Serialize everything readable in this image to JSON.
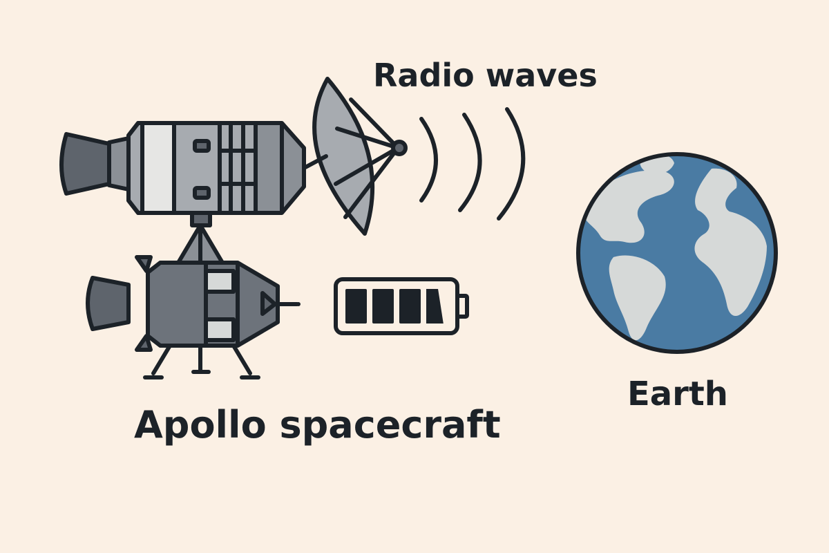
{
  "labels": {
    "radio_waves": "Radio waves",
    "spacecraft": "Apollo spacecraft",
    "earth": "Earth"
  },
  "battery": {
    "filled_cells": 3,
    "total_cells": 4
  },
  "icons": {
    "spacecraft": "apollo-spacecraft-icon",
    "dish": "radio-dish-icon",
    "waves": "radio-waves-icon",
    "battery": "battery-icon",
    "earth": "earth-globe-icon"
  },
  "colors": {
    "background": "#fbf0e4",
    "outline": "#1c2228",
    "hull_light": "#a7abb0",
    "hull_mid": "#8b9096",
    "hull_dark": "#5e646c",
    "hull_highlight": "#e6e6e4",
    "ocean": "#4a7ba3",
    "land": "#d6d9d8"
  }
}
